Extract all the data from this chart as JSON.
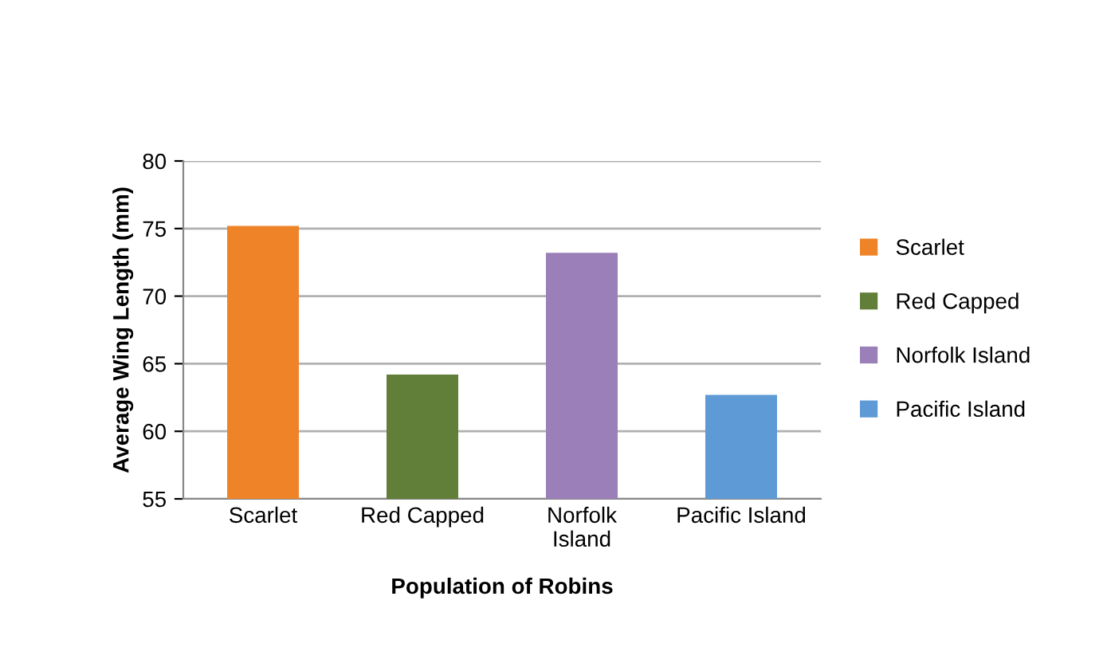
{
  "chart_data": {
    "type": "bar",
    "xlabel": "Population of Robins",
    "ylabel": "Average Wing Length (mm)",
    "categories": [
      "Scarlet",
      "Red Capped",
      "Norfolk\nIsland",
      "Pacific Island"
    ],
    "series": [
      {
        "name": "Scarlet",
        "color": "#ee8427",
        "values": [
          75.2,
          null,
          null,
          null
        ]
      },
      {
        "name": "Red Capped",
        "color": "#627f3a",
        "values": [
          null,
          64.2,
          null,
          null
        ]
      },
      {
        "name": "Norfolk Island",
        "color": "#9a7fb8",
        "values": [
          null,
          null,
          73.2,
          null
        ]
      },
      {
        "name": "Pacific Island",
        "color": "#5e9ad6",
        "values": [
          null,
          null,
          null,
          62.7
        ]
      }
    ],
    "ylim": [
      55,
      80
    ],
    "yticks": [
      55,
      60,
      65,
      70,
      75,
      80
    ],
    "grid": "y",
    "legend": "right"
  }
}
